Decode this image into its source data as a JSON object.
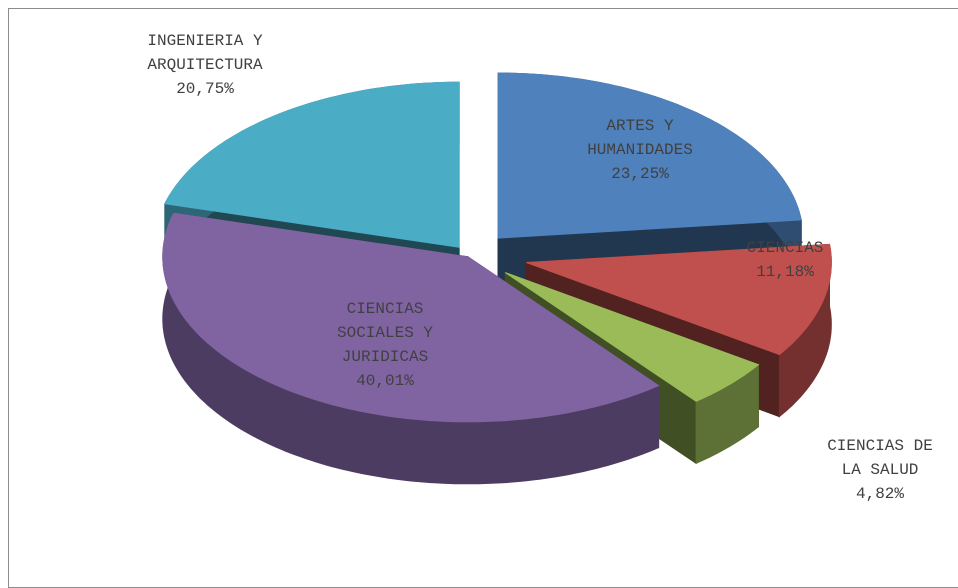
{
  "chart_data": {
    "type": "pie3d",
    "categories": [
      "ARTES Y HUMANIDADES",
      "CIENCIAS",
      "CIENCIAS DE LA SALUD",
      "CIENCIAS SOCIALES Y JURIDICAS",
      "INGENIERIA Y ARQUITECTURA"
    ],
    "values": [
      23.25,
      11.18,
      4.82,
      40.01,
      20.75
    ],
    "value_labels": [
      "23,25%",
      "11,18%",
      "4,82%",
      "40,01%",
      "20,75%"
    ],
    "colors": [
      "#4f81bd",
      "#c0504d",
      "#9bbb59",
      "#8064a2",
      "#4bacc6"
    ]
  }
}
